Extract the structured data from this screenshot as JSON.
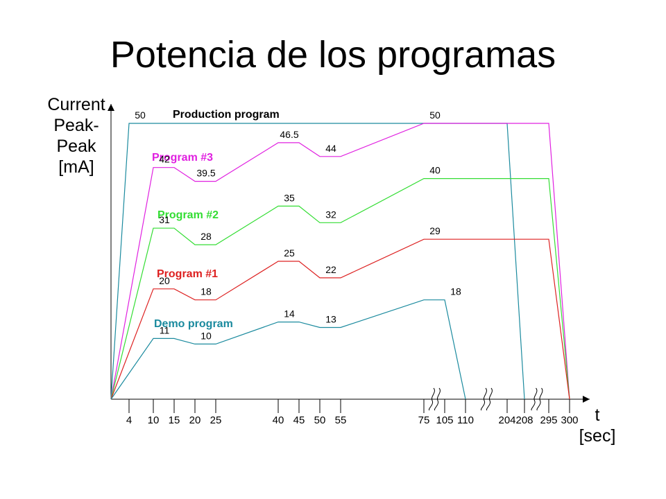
{
  "title": "Potencia de los programas",
  "chart_data": {
    "type": "line",
    "title": "Potencia de los programas",
    "ylabel_lines": [
      "Current",
      "Peak-",
      "Peak",
      "[mA]"
    ],
    "xlabel_lines": [
      "t",
      "[sec]"
    ],
    "axis_breaks_after": [
      "75",
      "110",
      "208"
    ],
    "x_ticks": [
      "4",
      "10",
      "15",
      "20",
      "25",
      "40",
      "45",
      "50",
      "55",
      "75",
      "105",
      "110",
      "204",
      "208",
      "295",
      "300"
    ],
    "series": [
      {
        "name": "Production program",
        "color": "#1a8a9e",
        "label_color": "#000000",
        "points": [
          [
            "0",
            0
          ],
          [
            "4",
            50
          ],
          [
            "204",
            50
          ],
          [
            "208",
            0
          ]
        ],
        "value_labels": [
          [
            "4",
            "50"
          ],
          [
            "75",
            "50"
          ]
        ]
      },
      {
        "name": "Program #3",
        "color": "#e020e0",
        "label_color": "#e020e0",
        "points": [
          [
            "0",
            0
          ],
          [
            "10",
            42
          ],
          [
            "15",
            42
          ],
          [
            "20",
            39.5
          ],
          [
            "25",
            39.5
          ],
          [
            "40",
            46.5
          ],
          [
            "45",
            46.5
          ],
          [
            "50",
            44
          ],
          [
            "55",
            44
          ],
          [
            "75",
            50
          ],
          [
            "295",
            50
          ],
          [
            "300",
            0
          ]
        ],
        "value_labels": [
          [
            "10",
            "42"
          ],
          [
            "20",
            "39.5"
          ],
          [
            "40",
            "46.5"
          ],
          [
            "50",
            "44"
          ]
        ]
      },
      {
        "name": "Program #2",
        "color": "#33dd33",
        "label_color": "#33dd33",
        "points": [
          [
            "0",
            0
          ],
          [
            "10",
            31
          ],
          [
            "15",
            31
          ],
          [
            "20",
            28
          ],
          [
            "25",
            28
          ],
          [
            "40",
            35
          ],
          [
            "45",
            35
          ],
          [
            "50",
            32
          ],
          [
            "55",
            32
          ],
          [
            "75",
            40
          ],
          [
            "295",
            40
          ],
          [
            "300",
            0
          ]
        ],
        "value_labels": [
          [
            "10",
            "31"
          ],
          [
            "20",
            "28"
          ],
          [
            "40",
            "35"
          ],
          [
            "50",
            "32"
          ],
          [
            "75",
            "40"
          ]
        ]
      },
      {
        "name": "Program #1",
        "color": "#dd2020",
        "label_color": "#dd2020",
        "points": [
          [
            "0",
            0
          ],
          [
            "10",
            20
          ],
          [
            "15",
            20
          ],
          [
            "20",
            18
          ],
          [
            "25",
            18
          ],
          [
            "40",
            25
          ],
          [
            "45",
            25
          ],
          [
            "50",
            22
          ],
          [
            "55",
            22
          ],
          [
            "75",
            29
          ],
          [
            "295",
            29
          ],
          [
            "300",
            0
          ]
        ],
        "value_labels": [
          [
            "10",
            "20"
          ],
          [
            "20",
            "18"
          ],
          [
            "40",
            "25"
          ],
          [
            "50",
            "22"
          ],
          [
            "75",
            "29"
          ]
        ]
      },
      {
        "name": "Demo program",
        "color": "#1a8a9e",
        "label_color": "#1a8a9e",
        "points": [
          [
            "0",
            0
          ],
          [
            "10",
            11
          ],
          [
            "15",
            11
          ],
          [
            "20",
            10
          ],
          [
            "25",
            10
          ],
          [
            "40",
            14
          ],
          [
            "45",
            14
          ],
          [
            "50",
            13
          ],
          [
            "55",
            13
          ],
          [
            "75",
            18
          ],
          [
            "105",
            18
          ],
          [
            "110",
            0
          ]
        ],
        "value_labels": [
          [
            "10",
            "11"
          ],
          [
            "20",
            "10"
          ],
          [
            "40",
            "14"
          ],
          [
            "50",
            "13"
          ],
          [
            "105",
            "18"
          ]
        ]
      }
    ]
  }
}
